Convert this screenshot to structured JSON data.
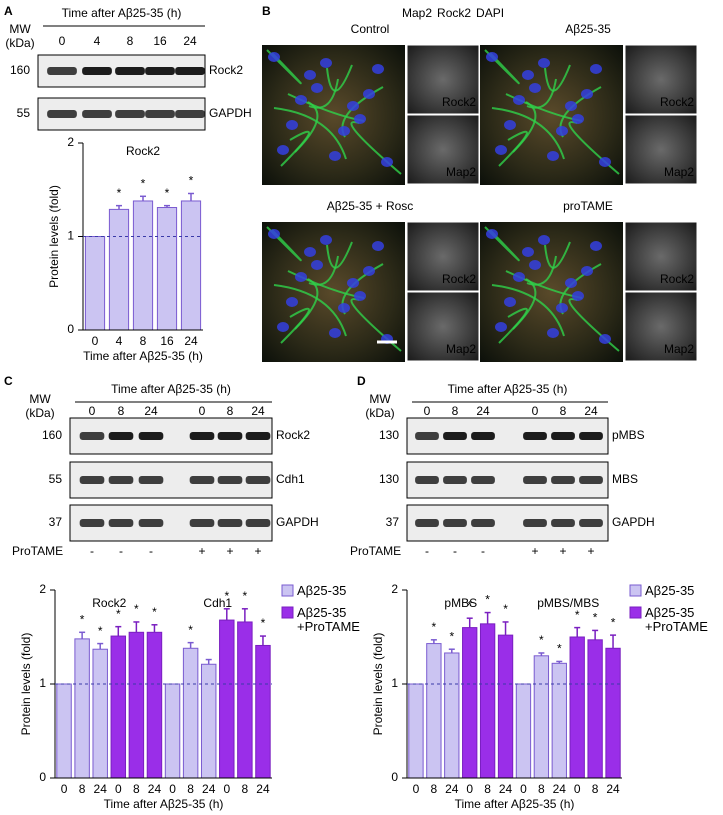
{
  "panels": [
    "A",
    "B",
    "C",
    "D"
  ],
  "blots": [
    {
      "title": "Time after Aβ25-35 (h)",
      "mw": [
        "MW",
        "(kDa)"
      ],
      "lanes": [
        "0",
        "4",
        "8",
        "16",
        "24"
      ],
      "rows": [
        {
          "mw": "160",
          "label": "Rock2"
        },
        {
          "mw": "55",
          "label": "GAPDH"
        }
      ]
    },
    {
      "title": "Time after Aβ25-35 (h)",
      "mw": [
        "MW",
        "(kDa)"
      ],
      "lanes": [
        "0",
        "8",
        "24",
        "0",
        "8",
        "24"
      ],
      "rows": [
        {
          "mw": "160",
          "label": "Rock2"
        },
        {
          "mw": "55",
          "label": "Cdh1"
        },
        {
          "mw": "37",
          "label": "GAPDH"
        }
      ],
      "treatment": {
        "label": "ProTAME",
        "marks": [
          "-",
          "-",
          "-",
          "+",
          "+",
          "+"
        ]
      }
    },
    {
      "title": "Time after Aβ25-35 (h)",
      "mw": [
        "MW",
        "(kDa)"
      ],
      "lanes": [
        "0",
        "8",
        "24",
        "0",
        "8",
        "24"
      ],
      "rows": [
        {
          "mw": "130",
          "label": "pMBS"
        },
        {
          "mw": "130",
          "label": "MBS"
        },
        {
          "mw": "37",
          "label": "GAPDH"
        }
      ],
      "treatment": {
        "label": "ProTAME",
        "marks": [
          "-",
          "-",
          "-",
          "+",
          "+",
          "+"
        ]
      }
    }
  ],
  "images": {
    "stains": [
      {
        "text": "Map2",
        "color": "#1fae3c"
      },
      {
        "text": "Rock2",
        "color": "#e0201b"
      },
      {
        "text": "DAPI",
        "color": "#1a2bd8"
      }
    ],
    "panels": [
      {
        "title": "Control",
        "insets": [
          "Rock2",
          "Map2"
        ]
      },
      {
        "title": "Aβ25-35",
        "insets": [
          "Rock2",
          "Map2"
        ]
      },
      {
        "title": "Aβ25-35 + Rosc",
        "insets": [
          "Rock2",
          "Map2"
        ]
      },
      {
        "title": "proTAME",
        "insets": [
          "Rock2",
          "Map2"
        ]
      }
    ]
  },
  "chart_data": [
    {
      "type": "bar",
      "title": "Rock2",
      "xlabel": "Time after Aβ25-35 (h)",
      "ylabel": "Protein levels (fold)",
      "categories": [
        "0",
        "4",
        "8",
        "16",
        "24"
      ],
      "values": [
        1,
        1.29,
        1.38,
        1.31,
        1.38
      ],
      "errors": [
        null,
        0.04,
        0.05,
        0.02,
        0.08
      ],
      "significance": [
        null,
        "*",
        "*",
        "*",
        "*"
      ],
      "color": "#cbc4f2",
      "edge_color": "#7a5bd0",
      "ylim": [
        0,
        2
      ],
      "yticks": [
        0,
        1,
        2
      ],
      "reference_line": 1
    },
    {
      "type": "bar",
      "groups": [
        "Rock2",
        "Cdh1"
      ],
      "xlabel": "Time after Aβ25-35 (h)",
      "ylabel": "Protein levels (fold)",
      "categories": [
        "0",
        "8",
        "24",
        "0",
        "8",
        "24",
        "0",
        "8",
        "24",
        "0",
        "8",
        "24"
      ],
      "series": [
        {
          "name": "Aβ25-35",
          "color": "#cbc4f2",
          "edge_color": "#7a5bd0",
          "values": [
            1,
            1.48,
            1.37,
            null,
            null,
            null,
            1,
            1.38,
            1.21,
            null,
            null,
            null
          ],
          "errors": [
            null,
            0.07,
            0.06,
            null,
            null,
            null,
            null,
            0.06,
            0.05,
            null,
            null,
            null
          ],
          "significance": [
            null,
            "*",
            "*",
            null,
            null,
            null,
            null,
            "*",
            null,
            null,
            null,
            null
          ]
        },
        {
          "name": "Aβ25-35 +ProTAME",
          "color": "#9a2ee8",
          "edge_color": "#7a1fc0",
          "values": [
            null,
            null,
            null,
            1.51,
            1.55,
            1.55,
            null,
            null,
            null,
            1.68,
            1.66,
            1.41
          ],
          "errors": [
            null,
            null,
            null,
            0.1,
            0.11,
            0.08,
            null,
            null,
            null,
            0.12,
            0.14,
            0.1
          ],
          "significance": [
            null,
            null,
            null,
            "*",
            "*",
            "*",
            null,
            null,
            null,
            "*",
            "*",
            "*"
          ]
        }
      ],
      "legend": "outside right",
      "ylim": [
        0,
        2
      ],
      "yticks": [
        0,
        1,
        2
      ],
      "reference_line": 1
    },
    {
      "type": "bar",
      "groups": [
        "pMBS",
        "pMBS/MBS"
      ],
      "xlabel": "Time after Aβ25-35 (h)",
      "ylabel": "Protein levels (fold)",
      "categories": [
        "0",
        "8",
        "24",
        "0",
        "8",
        "24",
        "0",
        "8",
        "24",
        "0",
        "8",
        "24"
      ],
      "series": [
        {
          "name": "Aβ25-35",
          "color": "#cbc4f2",
          "edge_color": "#7a5bd0",
          "values": [
            1,
            1.43,
            1.33,
            null,
            null,
            null,
            1,
            1.3,
            1.22,
            null,
            null,
            null
          ],
          "errors": [
            null,
            0.04,
            0.04,
            null,
            null,
            null,
            null,
            0.03,
            0.02,
            null,
            null,
            null
          ],
          "significance": [
            null,
            "*",
            "*",
            null,
            null,
            null,
            null,
            "*",
            "*",
            null,
            null,
            null
          ]
        },
        {
          "name": "Aβ25-35 +ProTAME",
          "color": "#9a2ee8",
          "edge_color": "#7a1fc0",
          "values": [
            null,
            null,
            null,
            1.6,
            1.64,
            1.52,
            null,
            null,
            null,
            1.5,
            1.47,
            1.38
          ],
          "errors": [
            null,
            null,
            null,
            0.1,
            0.12,
            0.14,
            null,
            null,
            null,
            0.1,
            0.1,
            0.14
          ],
          "significance": [
            null,
            null,
            null,
            "*",
            "*",
            "*",
            null,
            null,
            null,
            "*",
            "*",
            "*"
          ]
        }
      ],
      "legend": "outside right",
      "ylim": [
        0,
        2
      ],
      "yticks": [
        0,
        1,
        2
      ],
      "reference_line": 1
    }
  ]
}
